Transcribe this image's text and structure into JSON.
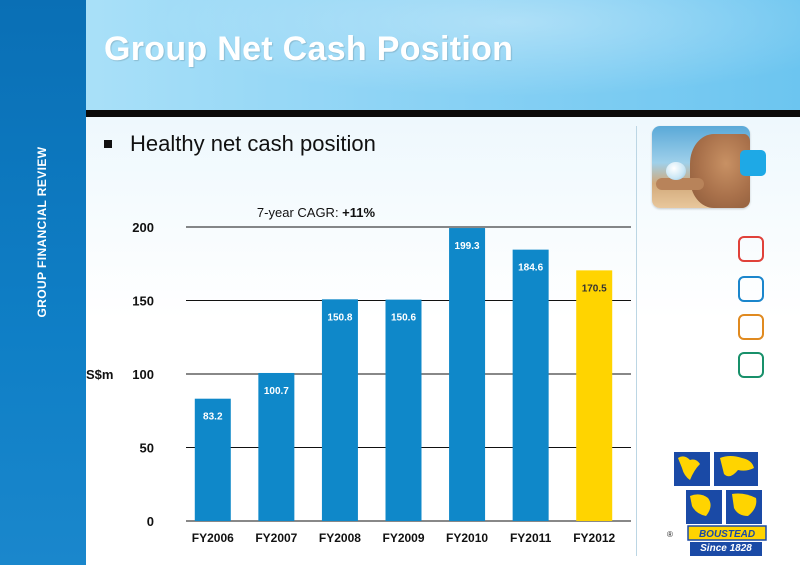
{
  "slide": {
    "title": "Group Net Cash Position",
    "side_label": "GROUP FINANCIAL REVIEW",
    "bullet": "Healthy net cash position"
  },
  "logo": {
    "name": "BOUSTEAD",
    "tagline": "Since 1828",
    "reg_mark": "®"
  },
  "colors": {
    "bar_primary": "#0f88c9",
    "bar_highlight": "#ffd400",
    "navy": "#1a4aa6",
    "square_red": "#e0413a",
    "square_blue": "#1b86cc",
    "square_orange": "#e08a20",
    "square_green": "#18906a",
    "square_filled": "#1ea9e6"
  },
  "chart_data": {
    "type": "bar",
    "categories": [
      "FY2006",
      "FY2007",
      "FY2008",
      "FY2009",
      "FY2010",
      "FY2011",
      "FY2012"
    ],
    "values": [
      83.2,
      100.7,
      150.8,
      150.6,
      199.3,
      184.6,
      170.5
    ],
    "value_labels": [
      "83.2",
      "100.7",
      "150.8",
      "150.6",
      "199.3",
      "184.6",
      "170.5"
    ],
    "highlight_index": 6,
    "ylabel": "S$m",
    "yticks": [
      0,
      50,
      100,
      150,
      200
    ],
    "ylim": [
      0,
      200
    ],
    "grid": true,
    "annotation_prefix": "7-year CAGR: ",
    "annotation_value": "+11%"
  }
}
